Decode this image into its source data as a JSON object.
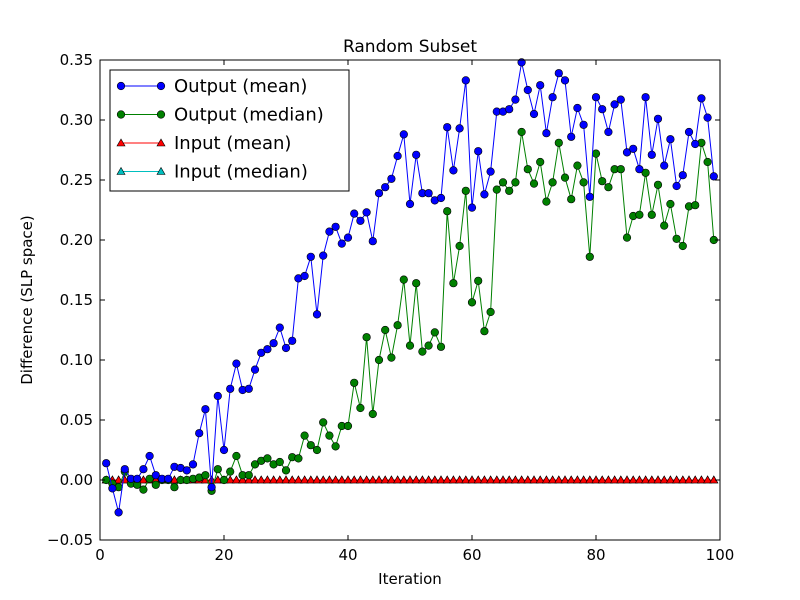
{
  "chart_data": {
    "type": "line",
    "title": "Random Subset",
    "xlabel": "Iteration",
    "ylabel": "Difference (SLP space)",
    "xlim": [
      0,
      100
    ],
    "ylim": [
      -0.05,
      0.35
    ],
    "xticks": [
      0,
      20,
      40,
      60,
      80,
      100
    ],
    "xtick_labels": [
      "0",
      "20",
      "40",
      "60",
      "80",
      "100"
    ],
    "yticks": [
      -0.05,
      0.0,
      0.05,
      0.1,
      0.15,
      0.2,
      0.25,
      0.3,
      0.35
    ],
    "ytick_labels": [
      "−0.05",
      "0.00",
      "0.05",
      "0.10",
      "0.15",
      "0.20",
      "0.25",
      "0.30",
      "0.35"
    ],
    "grid": false,
    "legend_position": "top-left",
    "x": [
      1,
      2,
      3,
      4,
      5,
      6,
      7,
      8,
      9,
      10,
      11,
      12,
      13,
      14,
      15,
      16,
      17,
      18,
      19,
      20,
      21,
      22,
      23,
      24,
      25,
      26,
      27,
      28,
      29,
      30,
      31,
      32,
      33,
      34,
      35,
      36,
      37,
      38,
      39,
      40,
      41,
      42,
      43,
      44,
      45,
      46,
      47,
      48,
      49,
      50,
      51,
      52,
      53,
      54,
      55,
      56,
      57,
      58,
      59,
      60,
      61,
      62,
      63,
      64,
      65,
      66,
      67,
      68,
      69,
      70,
      71,
      72,
      73,
      74,
      75,
      76,
      77,
      78,
      79,
      80,
      81,
      82,
      83,
      84,
      85,
      86,
      87,
      88,
      89,
      90,
      91,
      92,
      93,
      94,
      95,
      96,
      97,
      98,
      99
    ],
    "series": [
      {
        "name": "Output (mean)",
        "color": "#0000ff",
        "marker": "circle",
        "values": [
          0.014,
          -0.007,
          -0.027,
          0.009,
          0.001,
          0.001,
          0.009,
          0.02,
          0.004,
          0.001,
          0.001,
          0.011,
          0.01,
          0.008,
          0.013,
          0.039,
          0.059,
          -0.006,
          0.07,
          0.025,
          0.076,
          0.097,
          0.075,
          0.076,
          0.092,
          0.106,
          0.109,
          0.114,
          0.127,
          0.11,
          0.116,
          0.168,
          0.17,
          0.186,
          0.138,
          0.187,
          0.207,
          0.211,
          0.197,
          0.202,
          0.222,
          0.216,
          0.223,
          0.199,
          0.239,
          0.244,
          0.251,
          0.27,
          0.288,
          0.23,
          0.271,
          0.239,
          0.239,
          0.233,
          0.235,
          0.294,
          0.258,
          0.293,
          0.333,
          0.227,
          0.274,
          0.238,
          0.257,
          0.307,
          0.307,
          0.309,
          0.317,
          0.348,
          0.325,
          0.305,
          0.329,
          0.289,
          0.319,
          0.339,
          0.333,
          0.286,
          0.31,
          0.296,
          0.236,
          0.319,
          0.309,
          0.29,
          0.313,
          0.317,
          0.273,
          0.276,
          0.259,
          0.319,
          0.271,
          0.301,
          0.262,
          0.284,
          0.245,
          0.254,
          0.29,
          0.28,
          0.318,
          0.302,
          0.253
        ]
      },
      {
        "name": "Output (median)",
        "color": "#008000",
        "marker": "circle",
        "values": [
          0.0,
          -0.003,
          -0.006,
          0.007,
          -0.003,
          -0.004,
          -0.008,
          0.001,
          -0.004,
          0.0,
          0.0,
          -0.006,
          0.0,
          0.0,
          0.001,
          0.002,
          0.004,
          -0.009,
          0.009,
          0.0,
          0.007,
          0.02,
          0.004,
          0.004,
          0.013,
          0.016,
          0.018,
          0.013,
          0.015,
          0.008,
          0.019,
          0.018,
          0.037,
          0.029,
          0.025,
          0.048,
          0.037,
          0.028,
          0.045,
          0.045,
          0.081,
          0.06,
          0.119,
          0.055,
          0.1,
          0.125,
          0.102,
          0.129,
          0.167,
          0.112,
          0.164,
          0.107,
          0.112,
          0.123,
          0.111,
          0.224,
          0.164,
          0.195,
          0.241,
          0.148,
          0.166,
          0.124,
          0.14,
          0.242,
          0.248,
          0.241,
          0.248,
          0.29,
          0.259,
          0.247,
          0.265,
          0.232,
          0.248,
          0.281,
          0.252,
          0.234,
          0.262,
          0.248,
          0.186,
          0.272,
          0.249,
          0.244,
          0.259,
          0.259,
          0.202,
          0.22,
          0.221,
          0.256,
          0.221,
          0.246,
          0.212,
          0.23,
          0.201,
          0.195,
          0.228,
          0.229,
          0.281,
          0.265,
          0.2
        ]
      },
      {
        "name": "Input (mean)",
        "color": "#ff0000",
        "marker": "triangle",
        "constant": 0.0
      },
      {
        "name": "Input (median)",
        "color": "#00bfbf",
        "marker": "triangle",
        "constant": 0.0
      }
    ]
  }
}
